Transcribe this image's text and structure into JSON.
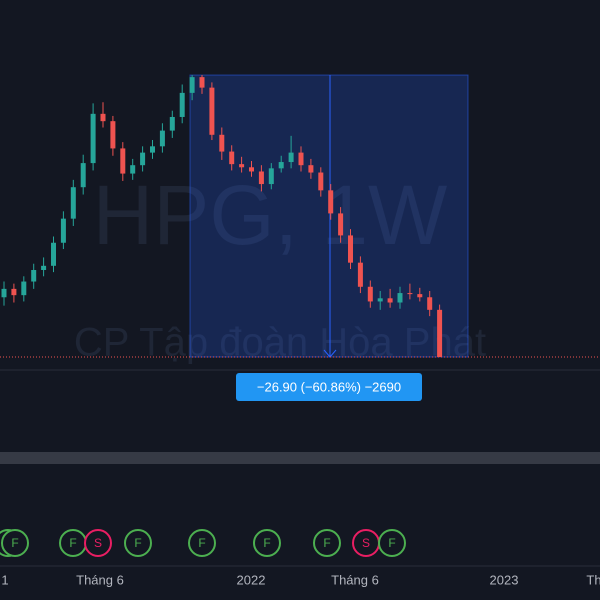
{
  "chart_data": {
    "type": "candlestick",
    "watermark": {
      "symbol": "HPG, 1W",
      "company": "CP Tập đoàn Hòa Phát"
    },
    "open": [
      23.0,
      23.8,
      23.2,
      24.5,
      25.6,
      26.0,
      28.2,
      30.5,
      33.5,
      35.8,
      40.5,
      39.8,
      37.2,
      34.8,
      35.6,
      36.8,
      37.4,
      38.9,
      40.2,
      42.5,
      44.0,
      43.0,
      38.5,
      36.9,
      35.7,
      35.4,
      35.0,
      33.8,
      35.3,
      35.9,
      36.8,
      35.6,
      34.9,
      33.2,
      31.0,
      28.9,
      26.3,
      24.0,
      22.6,
      22.9,
      22.5,
      23.4,
      23.3,
      23.0,
      21.8
    ],
    "high": [
      24.5,
      24.3,
      25.0,
      26.2,
      26.8,
      28.8,
      31.2,
      34.2,
      36.6,
      41.5,
      41.6,
      40.3,
      37.8,
      36.2,
      37.4,
      38.0,
      39.6,
      40.8,
      43.3,
      44.2,
      44.2,
      43.5,
      39.2,
      37.5,
      36.4,
      36.0,
      35.6,
      35.8,
      36.5,
      38.4,
      37.4,
      36.2,
      35.4,
      33.8,
      31.6,
      29.5,
      26.9,
      24.6,
      23.6,
      23.8,
      24.0,
      24.3,
      23.9,
      23.6,
      22.3
    ],
    "low": [
      22.2,
      22.5,
      22.6,
      23.8,
      25.0,
      25.4,
      27.6,
      29.8,
      32.8,
      35.1,
      39.2,
      36.5,
      34.1,
      34.2,
      35.0,
      36.2,
      36.8,
      38.2,
      39.6,
      41.8,
      42.4,
      38.0,
      36.1,
      35.1,
      34.9,
      34.5,
      33.1,
      33.3,
      34.9,
      35.3,
      35.0,
      34.3,
      32.6,
      30.4,
      28.2,
      25.7,
      23.4,
      22.0,
      21.8,
      22.0,
      21.9,
      22.8,
      22.6,
      21.2,
      17.3
    ],
    "close": [
      23.8,
      23.2,
      24.5,
      25.6,
      26.0,
      28.2,
      30.5,
      33.5,
      35.8,
      40.5,
      39.8,
      37.2,
      34.8,
      35.6,
      36.8,
      37.4,
      38.9,
      40.2,
      42.5,
      44.0,
      43.0,
      38.5,
      36.9,
      35.7,
      35.4,
      35.0,
      33.8,
      35.3,
      35.9,
      36.8,
      35.6,
      34.9,
      33.2,
      31.0,
      28.9,
      26.3,
      24.0,
      22.6,
      22.9,
      22.5,
      23.4,
      23.3,
      23.0,
      21.8,
      17.3
    ],
    "up_color": "#26a69a",
    "down_color": "#ef5350",
    "ylim": [
      16.06,
      51.36
    ],
    "measure": {
      "start": 44.2,
      "end": 17.3,
      "label": "−26.90 (−60.86%) −2690"
    },
    "x_labels": [
      "1",
      "Tháng 6",
      "2022",
      "Tháng 6",
      "2023",
      "Th"
    ],
    "events": [
      {
        "label": "F",
        "color": "#4caf50"
      },
      {
        "label": "F",
        "color": "#4caf50"
      },
      {
        "label": "F",
        "color": "#4caf50"
      },
      {
        "label": "S",
        "color": "#e91e63"
      },
      {
        "label": "F",
        "color": "#4caf50"
      },
      {
        "label": "F",
        "color": "#4caf50"
      },
      {
        "label": "F",
        "color": "#4caf50"
      },
      {
        "label": "F",
        "color": "#4caf50"
      },
      {
        "label": "S",
        "color": "#e91e63"
      },
      {
        "label": "F",
        "color": "#4caf50"
      }
    ]
  }
}
